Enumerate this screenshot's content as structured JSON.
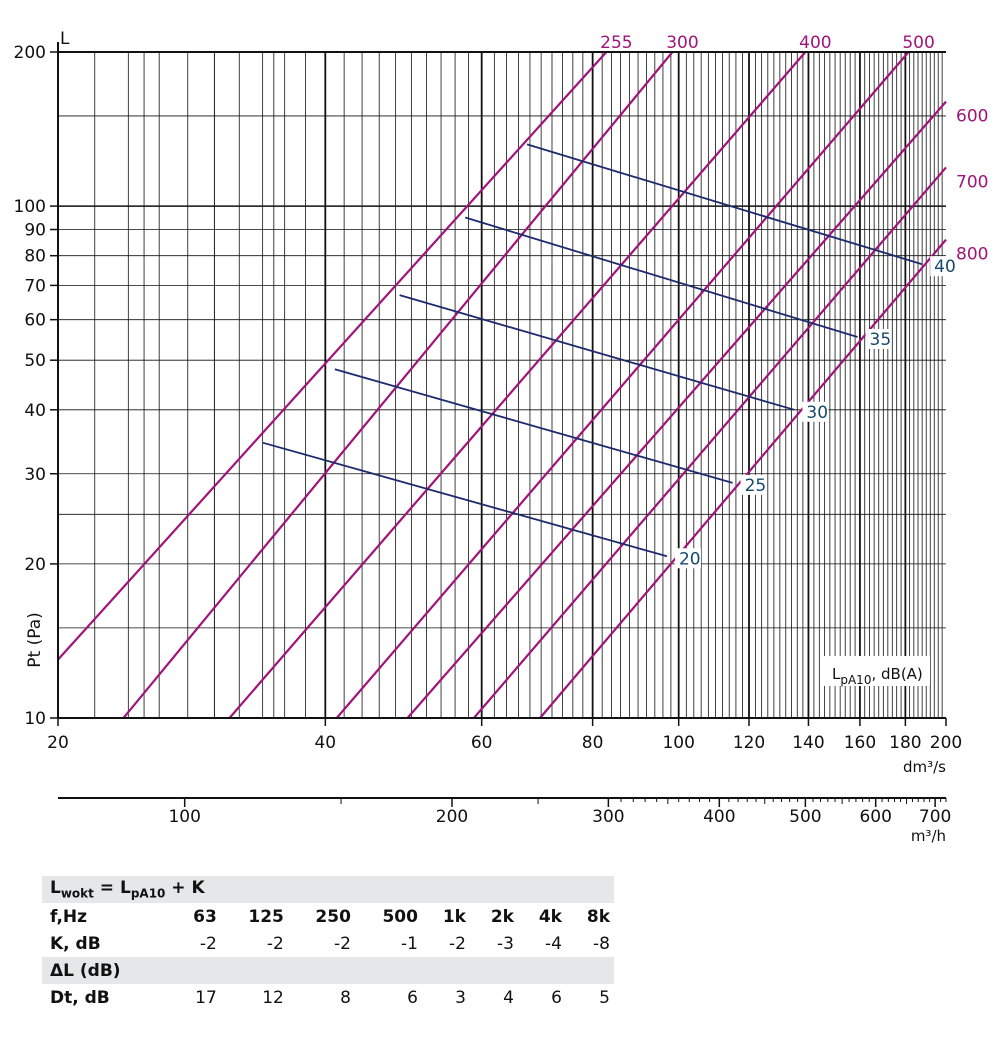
{
  "chart_data": {
    "type": "line",
    "ylabel": "Pt (Pa)",
    "y_axis_top_label": "L",
    "xunit": "dm³/s",
    "yscale": "log",
    "xscale": "log",
    "xlim": [
      20,
      200
    ],
    "ylim": [
      10,
      200
    ],
    "xticks": [
      20,
      40,
      60,
      80,
      100,
      120,
      140,
      160,
      180,
      200
    ],
    "yticks": [
      10,
      20,
      30,
      40,
      50,
      60,
      70,
      80,
      90,
      100,
      200
    ],
    "secondary_axis": {
      "unit": "m³/h",
      "ticks": [
        100,
        200,
        300,
        400,
        500,
        600,
        700
      ]
    },
    "grid": true,
    "legend_label": "LpA10, dB(A)",
    "legend_main": "L",
    "legend_sub": "pA10",
    "legend_rest": ", dB(A)",
    "legend_position": "bottom-right",
    "series_color": "#a0147a",
    "level_color": "#1f2a6e",
    "level_label_color": "#16496e",
    "series": [
      {
        "name": "255",
        "x": [
          20,
          82.9
        ],
        "y": [
          13.0,
          200
        ]
      },
      {
        "name": "300",
        "x": [
          23.7,
          98.4
        ],
        "y": [
          10.0,
          200
        ]
      },
      {
        "name": "400",
        "x": [
          31.2,
          138.9
        ],
        "y": [
          10.0,
          200
        ]
      },
      {
        "name": "500",
        "x": [
          41.2,
          181.5
        ],
        "y": [
          10.0,
          200
        ]
      },
      {
        "name": "600",
        "x": [
          49.5,
          200
        ],
        "y": [
          10.0,
          160
        ]
      },
      {
        "name": "700",
        "x": [
          58.8,
          200
        ],
        "y": [
          10.0,
          119
        ]
      },
      {
        "name": "800",
        "x": [
          69.8,
          200
        ],
        "y": [
          10.0,
          86
        ]
      }
    ],
    "levels": [
      {
        "label": "20",
        "x": [
          34.0,
          97.0
        ],
        "y": [
          34.5,
          20.7
        ]
      },
      {
        "label": "25",
        "x": [
          41.0,
          115.0
        ],
        "y": [
          48.0,
          28.8
        ]
      },
      {
        "label": "30",
        "x": [
          48.5,
          135.0
        ],
        "y": [
          67.0,
          40.0
        ]
      },
      {
        "label": "35",
        "x": [
          57.5,
          159.0
        ],
        "y": [
          95.0,
          55.5
        ]
      },
      {
        "label": "40",
        "x": [
          67.5,
          188.0
        ],
        "y": [
          132.0,
          77.0
        ]
      }
    ]
  },
  "table": {
    "title_main": "L",
    "title_sub1": "wokt",
    "title_mid": " = L",
    "title_sub2": "pA10",
    "title_tail": " + K",
    "freq_label": "f,Hz",
    "frequencies": [
      "63",
      "125",
      "250",
      "500",
      "1k",
      "2k",
      "4k",
      "8k"
    ],
    "k_label": "K, dB",
    "k_values": [
      "-2",
      "-2",
      "-2",
      "-1",
      "-2",
      "-3",
      "-4",
      "-8"
    ],
    "delta_label": "ΔL (dB)",
    "dt_label": "Dt, dB",
    "dt_values": [
      "17",
      "12",
      "8",
      "6",
      "3",
      "4",
      "6",
      "5"
    ]
  }
}
